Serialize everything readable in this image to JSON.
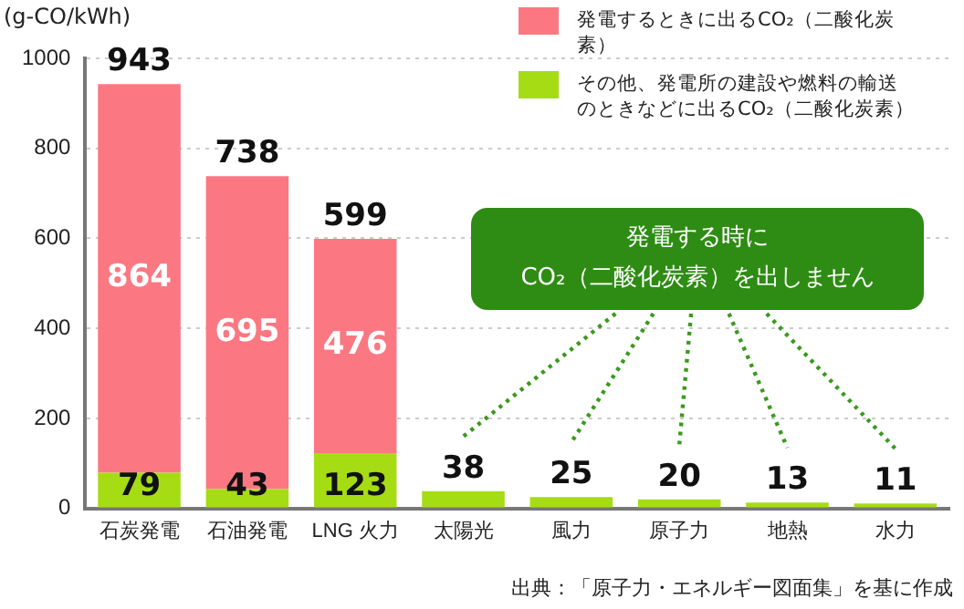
{
  "chart_data": {
    "type": "bar",
    "stacked": true,
    "ylabel": "(g-CO/kWh)",
    "categories": [
      "石炭発電",
      "石油発電",
      "LNG 火力",
      "太陽光",
      "風力",
      "原子力",
      "地熱",
      "水力"
    ],
    "series": [
      {
        "name": "その他、発電所の建設や燃料の輸送のときなどに出るCO₂（二酸化炭素）",
        "color": "#a6dc14",
        "values": [
          79,
          43,
          123,
          38,
          25,
          20,
          13,
          11
        ],
        "value_labels": [
          "79",
          "43",
          "123",
          null,
          null,
          null,
          null,
          null
        ]
      },
      {
        "name": "発電するときに出るCO₂（二酸化炭素）",
        "color": "#fb7882",
        "values": [
          864,
          695,
          476,
          null,
          null,
          null,
          null,
          null
        ],
        "value_labels": [
          "864",
          "695",
          "476",
          null,
          null,
          null,
          null,
          null
        ]
      }
    ],
    "totals": [
      "943",
      "738",
      "599",
      "38",
      "25",
      "20",
      "13",
      "11"
    ],
    "ylim": [
      0,
      1000
    ],
    "yticks": [
      0,
      200,
      400,
      600,
      800,
      1000
    ],
    "grid": "y",
    "legend": "top right",
    "annotations": [
      "発電する時に\nCO₂（二酸化炭素）を出しません",
      "出典：「原子力・エネルギー図面集」を基に作成"
    ]
  }
}
